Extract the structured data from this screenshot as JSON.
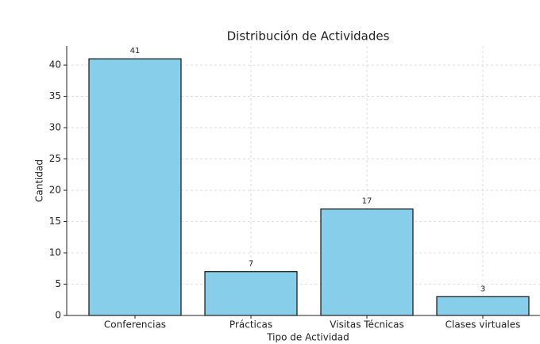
{
  "chart_data": {
    "type": "bar",
    "title": "Distribución de Actividades",
    "x_label": "Tipo de Actividad",
    "y_label": "Cantidad",
    "categories": [
      "Conferencias",
      "Prácticas",
      "Visitas Técnicas",
      "Clases virtuales"
    ],
    "values": [
      41,
      7,
      17,
      3
    ],
    "color": "#87ceeb",
    "ylim": [
      0,
      43.05
    ],
    "yticks": [
      0,
      5,
      10,
      15,
      20,
      25,
      30,
      35,
      40
    ],
    "grid": true
  }
}
